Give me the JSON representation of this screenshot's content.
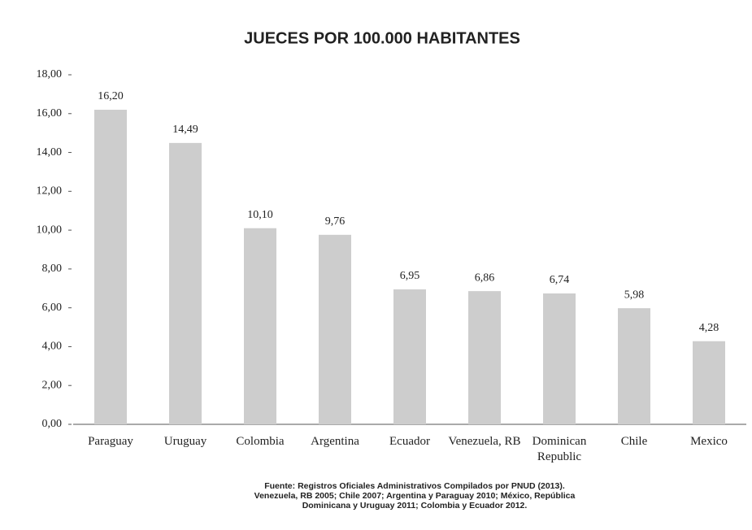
{
  "chart_data": {
    "type": "bar",
    "title": "JUECES POR 100.000 HABITANTES",
    "categories": [
      "Paraguay",
      "Uruguay",
      "Colombia",
      "Argentina",
      "Ecuador",
      "Venezuela, RB",
      "Dominican Republic",
      "Chile",
      "Mexico"
    ],
    "values": [
      16.2,
      14.49,
      10.1,
      9.76,
      6.95,
      6.86,
      6.74,
      5.98,
      4.28
    ],
    "value_labels": [
      "16,20",
      "14,49",
      "10,10",
      "9,76",
      "6,95",
      "6,86",
      "6,74",
      "5,98",
      "4,28"
    ],
    "color": "#cdcdcd",
    "ylim": [
      0,
      18
    ],
    "yticks": [
      {
        "value": 0,
        "label": "0,00"
      },
      {
        "value": 2,
        "label": "2,00"
      },
      {
        "value": 4,
        "label": "4,00"
      },
      {
        "value": 6,
        "label": "6,00"
      },
      {
        "value": 8,
        "label": "8,00"
      },
      {
        "value": 10,
        "label": "10,00"
      },
      {
        "value": 12,
        "label": "12,00"
      },
      {
        "value": 14,
        "label": "14,00"
      },
      {
        "value": 16,
        "label": "16,00"
      },
      {
        "value": 18,
        "label": "18,00"
      }
    ],
    "notes": [
      "Fuente: Registros Oficiales Administrativos Compilados por PNUD (2013).",
      "Venezuela, RB 2005; Chile 2007; Argentina y Paraguay 2010; México, República",
      "Dominicana y Uruguay 2011; Colombia y Ecuador 2012."
    ]
  }
}
